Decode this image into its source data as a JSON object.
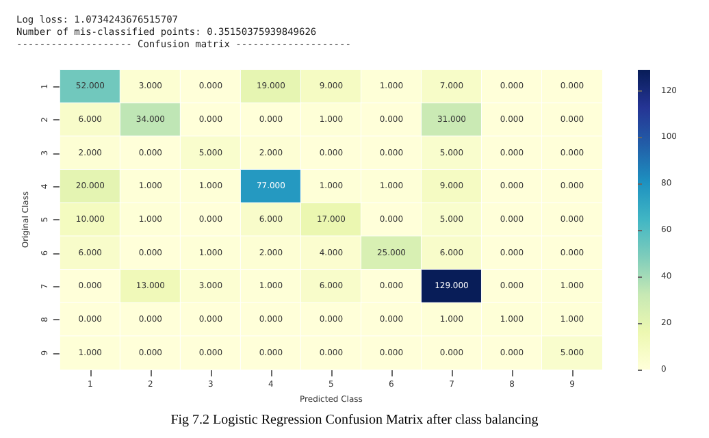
{
  "chart_data": {
    "type": "heatmap",
    "title": "Log loss: 1.0734243676515707",
    "subtitle": "Number of mis-classified points: 0.35150375939849626",
    "annotations": [
      "-------------------- Confusion matrix --------------------",
      "Fig 7.2 Logistic Regression Confusion Matrix after class balancing"
    ],
    "xlabel": "Predicted Class",
    "ylabel": "Original Class",
    "categories": [
      "1",
      "2",
      "3",
      "4",
      "5",
      "6",
      "7",
      "8",
      "9"
    ],
    "y_categories": [
      "1",
      "2",
      "3",
      "4",
      "5",
      "6",
      "7",
      "8",
      "9"
    ],
    "cells": [
      [
        52,
        3,
        0,
        19,
        9,
        1,
        7,
        0,
        0
      ],
      [
        6,
        34,
        0,
        0,
        1,
        0,
        31,
        0,
        0
      ],
      [
        2,
        0,
        5,
        2,
        0,
        0,
        5,
        0,
        0
      ],
      [
        20,
        1,
        1,
        77,
        1,
        1,
        9,
        0,
        0
      ],
      [
        10,
        1,
        0,
        6,
        17,
        0,
        5,
        0,
        0
      ],
      [
        6,
        0,
        1,
        2,
        4,
        25,
        6,
        0,
        0
      ],
      [
        0,
        13,
        3,
        1,
        6,
        0,
        129,
        0,
        1
      ],
      [
        0,
        0,
        0,
        0,
        0,
        0,
        1,
        1,
        1
      ],
      [
        1,
        0,
        0,
        0,
        0,
        0,
        0,
        0,
        5
      ]
    ],
    "cell_labels": [
      [
        "52.000",
        "3.000",
        "0.000",
        "19.000",
        "9.000",
        "1.000",
        "7.000",
        "0.000",
        "0.000"
      ],
      [
        "6.000",
        "34.000",
        "0.000",
        "0.000",
        "1.000",
        "0.000",
        "31.000",
        "0.000",
        "0.000"
      ],
      [
        "2.000",
        "0.000",
        "5.000",
        "2.000",
        "0.000",
        "0.000",
        "5.000",
        "0.000",
        "0.000"
      ],
      [
        "20.000",
        "1.000",
        "1.000",
        "77.000",
        "1.000",
        "1.000",
        "9.000",
        "0.000",
        "0.000"
      ],
      [
        "10.000",
        "1.000",
        "0.000",
        "6.000",
        "17.000",
        "0.000",
        "5.000",
        "0.000",
        "0.000"
      ],
      [
        "6.000",
        "0.000",
        "1.000",
        "2.000",
        "4.000",
        "25.000",
        "6.000",
        "0.000",
        "0.000"
      ],
      [
        "0.000",
        "13.000",
        "3.000",
        "1.000",
        "6.000",
        "0.000",
        "129.000",
        "0.000",
        "1.000"
      ],
      [
        "0.000",
        "0.000",
        "0.000",
        "0.000",
        "0.000",
        "0.000",
        "1.000",
        "1.000",
        "1.000"
      ],
      [
        "1.000",
        "0.000",
        "0.000",
        "0.000",
        "0.000",
        "0.000",
        "0.000",
        "0.000",
        "5.000"
      ]
    ],
    "clim": [
      0,
      129
    ],
    "cticks": [
      0,
      20,
      40,
      60,
      80,
      100,
      120
    ]
  }
}
